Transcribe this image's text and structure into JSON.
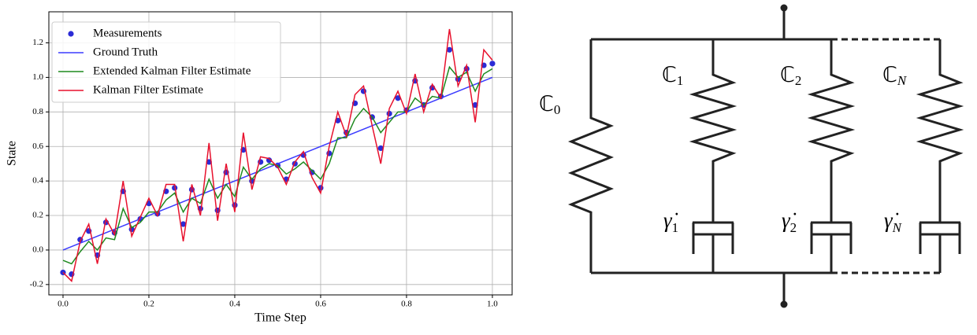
{
  "chart_data": {
    "type": "line",
    "x_label": "Time Step",
    "y_label": "State",
    "x": [
      0,
      0.02,
      0.04,
      0.06,
      0.08,
      0.1,
      0.12,
      0.14,
      0.16,
      0.18,
      0.2,
      0.22,
      0.24,
      0.26,
      0.28,
      0.3,
      0.32,
      0.34,
      0.36,
      0.38,
      0.4,
      0.42,
      0.44,
      0.46,
      0.48,
      0.5,
      0.52,
      0.54,
      0.56,
      0.58,
      0.6,
      0.62,
      0.64,
      0.66,
      0.68,
      0.7,
      0.72,
      0.74,
      0.76,
      0.78,
      0.8,
      0.82,
      0.84,
      0.86,
      0.88,
      0.9,
      0.92,
      0.94,
      0.96,
      0.98,
      1.0
    ],
    "series": [
      {
        "name": "Measurements",
        "color": "#2b2bd6",
        "style": "marker",
        "values": [
          -0.13,
          -0.14,
          0.06,
          0.11,
          -0.03,
          0.16,
          0.1,
          0.34,
          0.12,
          0.18,
          0.27,
          0.21,
          0.34,
          0.36,
          0.15,
          0.35,
          0.24,
          0.51,
          0.23,
          0.45,
          0.26,
          0.58,
          0.4,
          0.51,
          0.52,
          0.49,
          0.41,
          0.5,
          0.55,
          0.45,
          0.36,
          0.56,
          0.75,
          0.68,
          0.85,
          0.92,
          0.77,
          0.59,
          0.79,
          0.88,
          0.81,
          0.98,
          0.84,
          0.94,
          0.89,
          1.16,
          0.99,
          1.05,
          0.84,
          1.07,
          1.08
        ]
      },
      {
        "name": "Ground Truth",
        "color": "#3b3bff",
        "style": "line",
        "x": [
          0,
          1.0
        ],
        "values": [
          0,
          1.0
        ]
      },
      {
        "name": "Extended Kalman Filter Estimate",
        "color": "#1f8a1f",
        "style": "line",
        "values": [
          -0.06,
          -0.08,
          -0.01,
          0.05,
          0.0,
          0.07,
          0.06,
          0.24,
          0.13,
          0.16,
          0.22,
          0.22,
          0.29,
          0.33,
          0.22,
          0.3,
          0.27,
          0.41,
          0.3,
          0.38,
          0.31,
          0.48,
          0.41,
          0.47,
          0.5,
          0.49,
          0.44,
          0.47,
          0.51,
          0.46,
          0.41,
          0.5,
          0.65,
          0.65,
          0.76,
          0.82,
          0.77,
          0.68,
          0.74,
          0.8,
          0.8,
          0.88,
          0.84,
          0.89,
          0.88,
          1.06,
          1.0,
          1.03,
          0.92,
          1.02,
          1.05
        ]
      },
      {
        "name": "Kalman Filter Estimate",
        "color": "#e8112d",
        "style": "line",
        "values": [
          -0.13,
          -0.18,
          0.05,
          0.15,
          -0.08,
          0.18,
          0.09,
          0.4,
          0.08,
          0.19,
          0.3,
          0.2,
          0.38,
          0.38,
          0.05,
          0.38,
          0.2,
          0.62,
          0.17,
          0.5,
          0.22,
          0.68,
          0.35,
          0.54,
          0.53,
          0.48,
          0.38,
          0.51,
          0.57,
          0.42,
          0.33,
          0.6,
          0.8,
          0.66,
          0.9,
          0.95,
          0.72,
          0.5,
          0.82,
          0.92,
          0.79,
          1.02,
          0.8,
          0.96,
          0.88,
          1.28,
          0.95,
          1.07,
          0.74,
          1.16,
          1.1
        ]
      }
    ],
    "xlim": [
      -0.033,
      1.046
    ],
    "ylim": [
      -0.26,
      1.38
    ],
    "xticks": [
      {
        "value": 0,
        "label": "0.0"
      },
      0.2,
      0.4,
      0.6,
      0.8,
      {
        "value": 1,
        "label": "1.0"
      }
    ],
    "yticks": [
      -0.2,
      {
        "value": 0,
        "label": "0.0"
      },
      0.2,
      0.4,
      0.6,
      0.8,
      {
        "value": 1,
        "label": "1.0"
      },
      1.2
    ],
    "grid": true,
    "legend": "upper-left"
  },
  "diagram": {
    "springs": [
      {
        "symbol": "ℂ",
        "subscript": "0"
      },
      {
        "symbol": "ℂ",
        "subscript": "1"
      },
      {
        "symbol": "ℂ",
        "subscript": "2"
      },
      {
        "symbol": "ℂ",
        "subscript": "N"
      }
    ],
    "dampers": [
      {
        "symbol": "γ̇",
        "subscript": "1"
      },
      {
        "symbol": "γ̇",
        "subscript": "2"
      },
      {
        "symbol": "γ̇",
        "subscript": "N"
      }
    ]
  }
}
